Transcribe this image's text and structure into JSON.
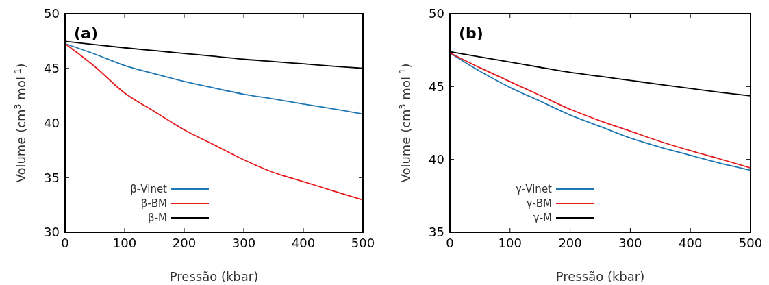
{
  "chart_data": [
    {
      "type": "line",
      "title": "(a)",
      "xlabel": "Pressão (kbar)",
      "ylabel": "Volume (cm$^{3}$ mol$^{-1}$)",
      "x": [
        0,
        50,
        100,
        150,
        200,
        250,
        300,
        350,
        400,
        450,
        500
      ],
      "xlim": [
        0,
        500
      ],
      "xticks": [
        0,
        100,
        200,
        300,
        400,
        500
      ],
      "ylim": [
        30,
        50
      ],
      "yticks": [
        30,
        35,
        40,
        45,
        50
      ],
      "legend": "bottom left",
      "grid": false,
      "line_style": "solid",
      "series": [
        {
          "name": "β-Vinet",
          "color": "#1f77b4",
          "values": [
            47.26,
            46.3,
            45.26,
            44.5,
            43.8,
            43.2,
            42.63,
            42.2,
            41.73,
            41.3,
            40.82
          ]
        },
        {
          "name": "β-BM",
          "color": "#e41a1c",
          "values": [
            47.26,
            45.16,
            42.74,
            41.05,
            39.37,
            38.0,
            36.63,
            35.47,
            34.63,
            33.79,
            32.95
          ]
        },
        {
          "name": "β-M",
          "color": "#000000",
          "values": [
            47.47,
            47.17,
            46.88,
            46.62,
            46.36,
            46.1,
            45.83,
            45.62,
            45.41,
            45.2,
            45.0
          ]
        }
      ]
    },
    {
      "type": "line",
      "title": "(b)",
      "xlabel": "Pressão (kbar)",
      "ylabel": "Volume (cm$^{3}$ mol$^{-1}$)",
      "x": [
        0,
        50,
        100,
        150,
        200,
        250,
        300,
        350,
        400,
        450,
        500
      ],
      "xlim": [
        0,
        500
      ],
      "xticks": [
        0,
        100,
        200,
        300,
        400,
        500
      ],
      "ylim": [
        35,
        50
      ],
      "yticks": [
        35,
        40,
        45,
        50
      ],
      "legend": "bottom left",
      "grid": false,
      "line_style": "solid",
      "series": [
        {
          "name": "γ-Vinet",
          "color": "#1f77b4",
          "values": [
            47.31,
            46.05,
            44.94,
            44.0,
            43.05,
            42.26,
            41.47,
            40.84,
            40.28,
            39.73,
            39.26
          ]
        },
        {
          "name": "γ-BM",
          "color": "#e41a1c",
          "values": [
            47.31,
            46.29,
            45.34,
            44.39,
            43.44,
            42.65,
            41.94,
            41.23,
            40.6,
            40.02,
            39.42
          ]
        },
        {
          "name": "γ-M",
          "color": "#000000",
          "values": [
            47.39,
            47.03,
            46.68,
            46.32,
            45.97,
            45.7,
            45.42,
            45.14,
            44.87,
            44.6,
            44.36
          ]
        }
      ]
    }
  ]
}
